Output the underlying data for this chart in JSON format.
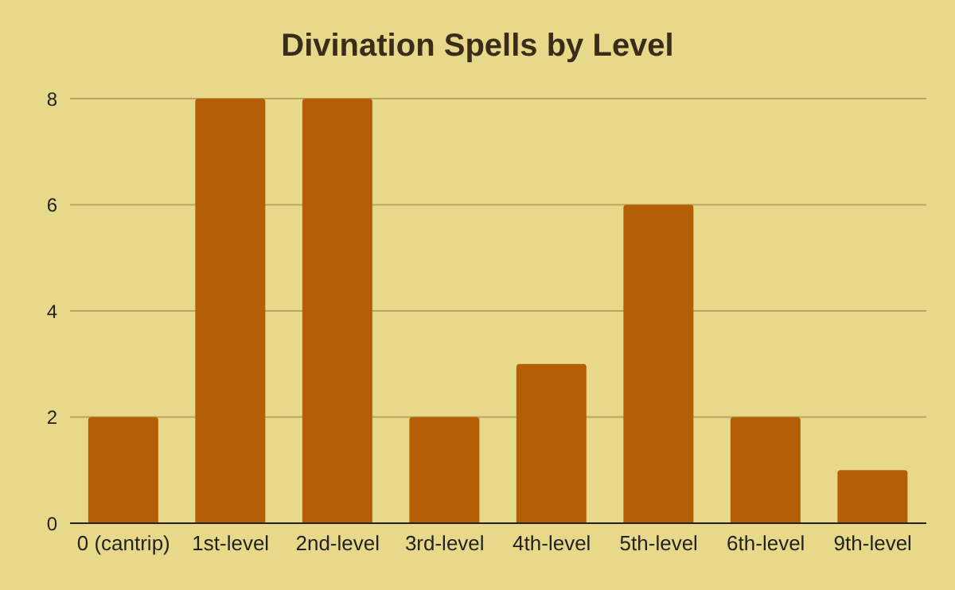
{
  "chart_data": {
    "type": "bar",
    "title": "Divination Spells by Level",
    "categories": [
      "0 (cantrip)",
      "1st-level",
      "2nd-level",
      "3rd-level",
      "4th-level",
      "5th-level",
      "6th-level",
      "9th-level"
    ],
    "values": [
      2,
      8,
      8,
      2,
      3,
      6,
      2,
      1
    ],
    "color": "#b45f06",
    "ylim": [
      0,
      8
    ],
    "yticks": [
      0,
      2,
      4,
      6,
      8
    ],
    "grid": "y"
  }
}
